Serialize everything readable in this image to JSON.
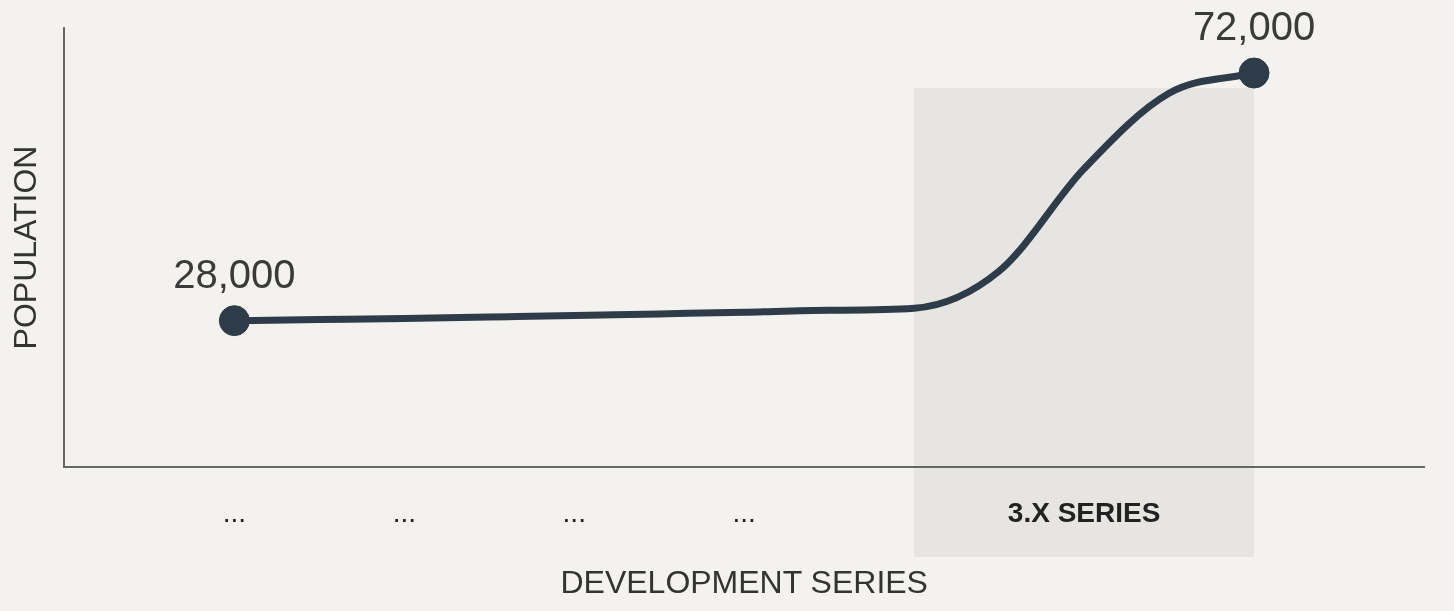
{
  "chart_data": {
    "type": "line",
    "xlabel": "DEVELOPMENT SERIES",
    "ylabel": "POPULATION",
    "categories": [
      null,
      null,
      "...",
      null,
      "...",
      null,
      "...",
      null,
      "...",
      null,
      null,
      null,
      "3.X SERIES",
      null,
      null,
      null,
      null
    ],
    "ylim": [
      2000,
      80000
    ],
    "tick_labels": "x",
    "grid": false,
    "legend": false,
    "series": [
      {
        "type": "line",
        "marker": "none",
        "color": "#2e3b48",
        "values": [
          null,
          null,
          28000,
          28200,
          28400,
          28650,
          28900,
          29200,
          29500,
          29850,
          30200,
          36800,
          55000,
          68400,
          72000,
          null,
          null
        ]
      },
      {
        "type": "scatter",
        "marker": "circle",
        "color": "#2e3b48",
        "values": [
          null,
          null,
          28000,
          null,
          null,
          null,
          null,
          null,
          null,
          null,
          null,
          null,
          null,
          null,
          72000,
          null,
          null
        ],
        "value_labels": [
          null,
          null,
          "28,000",
          null,
          null,
          null,
          null,
          null,
          null,
          null,
          null,
          null,
          null,
          null,
          "72,000",
          null,
          null
        ]
      }
    ]
  }
}
